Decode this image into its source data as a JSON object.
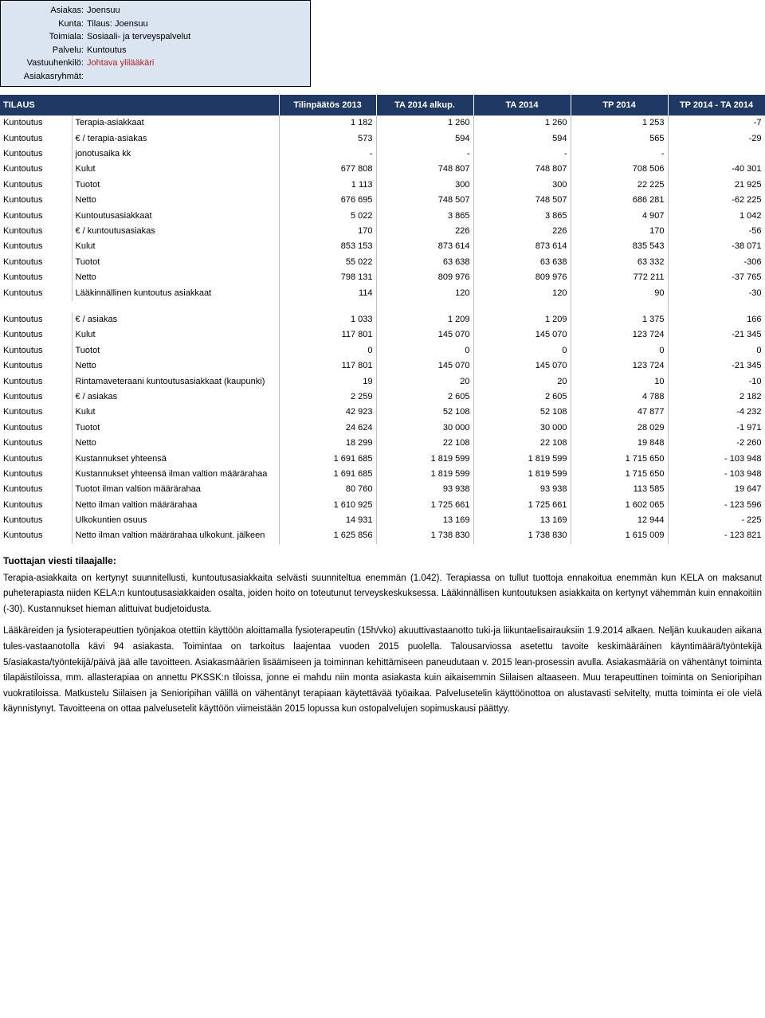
{
  "info": {
    "labels": {
      "asiakas": "Asiakas:",
      "kunta": "Kunta:",
      "toimiala": "Toimiala:",
      "palvelu": "Palvelu:",
      "vastuuhenkilo": "Vastuuhenkilö:",
      "asiakasryhmat": "Asiakasryhmät:"
    },
    "values": {
      "asiakas": "Joensuu",
      "kunta": "Tilaus: Joensuu",
      "toimiala": "Sosiaali- ja terveyspalvelut",
      "palvelu": "Kuntoutus",
      "vastuuhenkilo": "Johtava ylilääkäri",
      "asiakasryhmat": ""
    }
  },
  "table": {
    "headers": {
      "tilaus": "TILAUS",
      "tilinpaatos": "Tilinpäätös 2013",
      "ta_alkup": "TA 2014 alkup.",
      "ta": "TA 2014",
      "tp": "TP 2014",
      "diff": "TP 2014 - TA 2014"
    },
    "colors": {
      "header_bg": "#1f3864",
      "header_fg": "#ffffff",
      "row_border": "#c0c0c0",
      "info_bg": "#dbe5f1",
      "highlight_text": "#b22222"
    },
    "rows1": [
      {
        "svc": "Kuntoutus",
        "desc": "Terapia-asiakkaat",
        "c": [
          "1 182",
          "1 260",
          "1 260",
          "1 253",
          "-7"
        ]
      },
      {
        "svc": "Kuntoutus",
        "desc": "€ / terapia-asiakas",
        "c": [
          "573",
          "594",
          "594",
          "565",
          "-29"
        ]
      },
      {
        "svc": "Kuntoutus",
        "desc": "jonotusaika kk",
        "c": [
          "-",
          "-",
          "-",
          "-",
          ""
        ]
      },
      {
        "svc": "Kuntoutus",
        "desc": "Kulut",
        "c": [
          "677 808",
          "748 807",
          "748 807",
          "708 506",
          "-40 301"
        ]
      },
      {
        "svc": "Kuntoutus",
        "desc": "Tuotot",
        "c": [
          "1 113",
          "300",
          "300",
          "22 225",
          "21 925"
        ]
      },
      {
        "svc": "Kuntoutus",
        "desc": "Netto",
        "c": [
          "676 695",
          "748 507",
          "748 507",
          "686 281",
          "-62 225"
        ]
      },
      {
        "svc": "Kuntoutus",
        "desc": "Kuntoutusasiakkaat",
        "c": [
          "5 022",
          "3 865",
          "3 865",
          "4 907",
          "1 042"
        ]
      },
      {
        "svc": "Kuntoutus",
        "desc": "€ / kuntoutusasiakas",
        "c": [
          "170",
          "226",
          "226",
          "170",
          "-56"
        ]
      },
      {
        "svc": "Kuntoutus",
        "desc": "Kulut",
        "c": [
          "853 153",
          "873 614",
          "873 614",
          "835 543",
          "-38 071"
        ]
      },
      {
        "svc": "Kuntoutus",
        "desc": "Tuotot",
        "c": [
          "55 022",
          "63 638",
          "63 638",
          "63 332",
          "-306"
        ]
      },
      {
        "svc": "Kuntoutus",
        "desc": "Netto",
        "c": [
          "798 131",
          "809 976",
          "809 976",
          "772 211",
          "-37 765"
        ]
      },
      {
        "svc": "Kuntoutus",
        "desc": "Lääkinnällinen kuntoutus asiakkaat",
        "c": [
          "114",
          "120",
          "120",
          "90",
          "-30"
        ]
      }
    ],
    "rows2": [
      {
        "svc": "Kuntoutus",
        "desc": "€ / asiakas",
        "c": [
          "1 033",
          "1 209",
          "1 209",
          "1 375",
          "166"
        ]
      },
      {
        "svc": "Kuntoutus",
        "desc": "Kulut",
        "c": [
          "117 801",
          "145 070",
          "145 070",
          "123 724",
          "-21 345"
        ]
      },
      {
        "svc": "Kuntoutus",
        "desc": "Tuotot",
        "c": [
          "0",
          "0",
          "0",
          "0",
          "0"
        ]
      },
      {
        "svc": "Kuntoutus",
        "desc": "Netto",
        "c": [
          "117 801",
          "145 070",
          "145 070",
          "123 724",
          "-21 345"
        ]
      },
      {
        "svc": "Kuntoutus",
        "desc": "Rintamaveteraani kuntoutusasiakkaat (kaupunki)",
        "c": [
          "19",
          "20",
          "20",
          "10",
          "-10"
        ]
      },
      {
        "svc": "Kuntoutus",
        "desc": "€ / asiakas",
        "c": [
          "2 259",
          "2 605",
          "2 605",
          "4 788",
          "2 182"
        ]
      },
      {
        "svc": "Kuntoutus",
        "desc": "Kulut",
        "c": [
          "42 923",
          "52 108",
          "52 108",
          "47 877",
          "-4 232"
        ]
      },
      {
        "svc": "Kuntoutus",
        "desc": "Tuotot",
        "c": [
          "24 624",
          "30 000",
          "30 000",
          "28 029",
          "-1 971"
        ]
      },
      {
        "svc": "Kuntoutus",
        "desc": "Netto",
        "c": [
          "18 299",
          "22 108",
          "22 108",
          "19 848",
          "-2 260"
        ]
      },
      {
        "svc": "Kuntoutus",
        "desc": "Kustannukset yhteensä",
        "c": [
          "1 691 685",
          "1 819 599",
          "1 819 599",
          "1 715 650",
          "- 103 948"
        ]
      },
      {
        "svc": "Kuntoutus",
        "desc": "Kustannukset yhteensä ilman valtion määrärahaa",
        "c": [
          "1 691 685",
          "1 819 599",
          "1 819 599",
          "1 715 650",
          "- 103 948"
        ]
      },
      {
        "svc": "Kuntoutus",
        "desc": "Tuotot ilman valtion määrärahaa",
        "c": [
          "80 760",
          "93 938",
          "93 938",
          "113 585",
          "19 647"
        ]
      },
      {
        "svc": "Kuntoutus",
        "desc": "Netto ilman valtion määrärahaa",
        "c": [
          "1 610 925",
          "1 725 661",
          "1 725 661",
          "1 602 065",
          "- 123 596"
        ]
      },
      {
        "svc": "Kuntoutus",
        "desc": "Ulkokuntien osuus",
        "c": [
          "14 931",
          "13 169",
          "13 169",
          "12 944",
          "- 225"
        ]
      },
      {
        "svc": "Kuntoutus",
        "desc": "Netto ilman valtion määrärahaa ulkokunt. jälkeen",
        "c": [
          "1 625 856",
          "1 738 830",
          "1 738 830",
          "1 615 009",
          "- 123 821"
        ]
      }
    ]
  },
  "text": {
    "heading": "Tuottajan viesti tilaajalle:",
    "p1": "Terapia-asiakkaita on kertynyt suunnitellusti, kuntoutusasiakkaita selvästi suunniteltua enemmän (1.042). Terapiassa on tullut tuottoja ennakoitua enemmän kun KELA on maksanut puheterapiasta niiden KELA:n kuntoutusasiakkaiden osalta, joiden hoito on toteutunut terveyskeskuksessa. Lääkinnällisen kuntoutuksen asiakkaita on kertynyt vähemmän kuin ennakoitiin (-30). Kustannukset hieman alittuivat budjetoidusta.",
    "p2": "Lääkäreiden ja fysioterapeuttien työnjakoa otettiin käyttöön aloittamalla fysioterapeutin (15h/vko) akuuttivastaanotto tuki-ja liikuntaelisairauksiin 1.9.2014 alkaen. Neljän kuukauden aikana tules-vastaanotolla kävi 94 asiakasta. Toimintaa on tarkoitus laajentaa vuoden 2015 puolella. Talousarviossa asetettu tavoite keskimääräinen käyntimäärä/työntekijä 5/asiakasta/työntekijä/päivä jää alle tavoitteen. Asiakasmäärien lisäämiseen ja toiminnan kehittämiseen paneudutaan v. 2015 lean-prosessin avulla. Asiakasmääriä on vähentänyt toiminta tilapäistiloissa, mm. allasterapiaa on annettu PKSSK:n tiloissa, jonne ei mahdu niin monta asiakasta kuin aikaisemmin Siilaisen altaaseen. Muu terapeuttinen toiminta on Senioripihan vuokratiloissa. Matkustelu Siilaisen ja Senioripihan välillä on vähentänyt terapiaan käytettävää työaikaa. Palvelusetelin käyttöönottoa on alustavasti selvitelty, mutta toiminta ei ole vielä käynnistynyt. Tavoitteena on ottaa palvelusetelit käyttöön viimeistään 2015 lopussa kun ostopalvelujen sopimuskausi päättyy."
  }
}
